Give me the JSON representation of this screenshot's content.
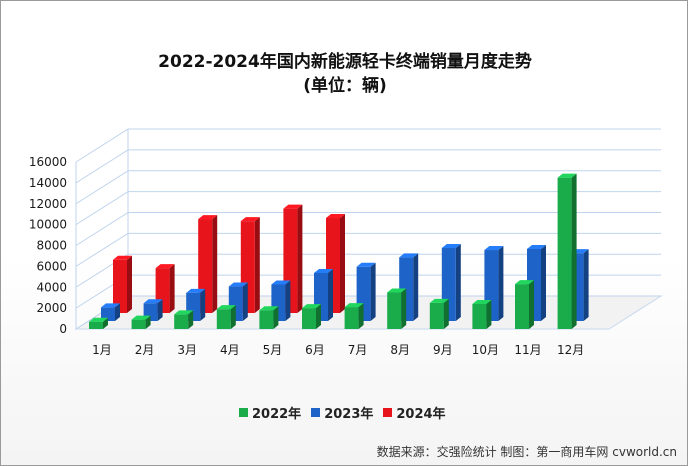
{
  "chart_data": {
    "type": "bar",
    "title": "2022-2024年国内新能源轻卡终端销量月度走势",
    "subtitle": "(单位：辆)",
    "categories": [
      "1月",
      "2月",
      "3月",
      "4月",
      "5月",
      "6月",
      "7月",
      "8月",
      "9月",
      "10月",
      "11月",
      "12月"
    ],
    "series": [
      {
        "name": "2022年",
        "color": "#1aab4a",
        "values": [
          700,
          900,
          1400,
          1900,
          1800,
          2000,
          2100,
          3500,
          2500,
          2400,
          4300,
          14500
        ]
      },
      {
        "name": "2023年",
        "color": "#1e64c8",
        "values": [
          1300,
          1700,
          2700,
          3300,
          3500,
          4600,
          5200,
          6100,
          7000,
          6800,
          6900,
          6500
        ]
      },
      {
        "name": "2024年",
        "color": "#e8141c",
        "values": [
          5100,
          4300,
          9000,
          8800,
          10000,
          9100,
          null,
          null,
          null,
          null,
          null,
          null
        ]
      }
    ],
    "ylim": [
      0,
      16000
    ],
    "yticks": [
      0,
      2000,
      4000,
      6000,
      8000,
      10000,
      12000,
      14000,
      16000
    ],
    "grid": true,
    "legend_position": "bottom"
  },
  "source_note": "数据来源：交强险统计  制图：第一商用车网 cvworld.cn"
}
